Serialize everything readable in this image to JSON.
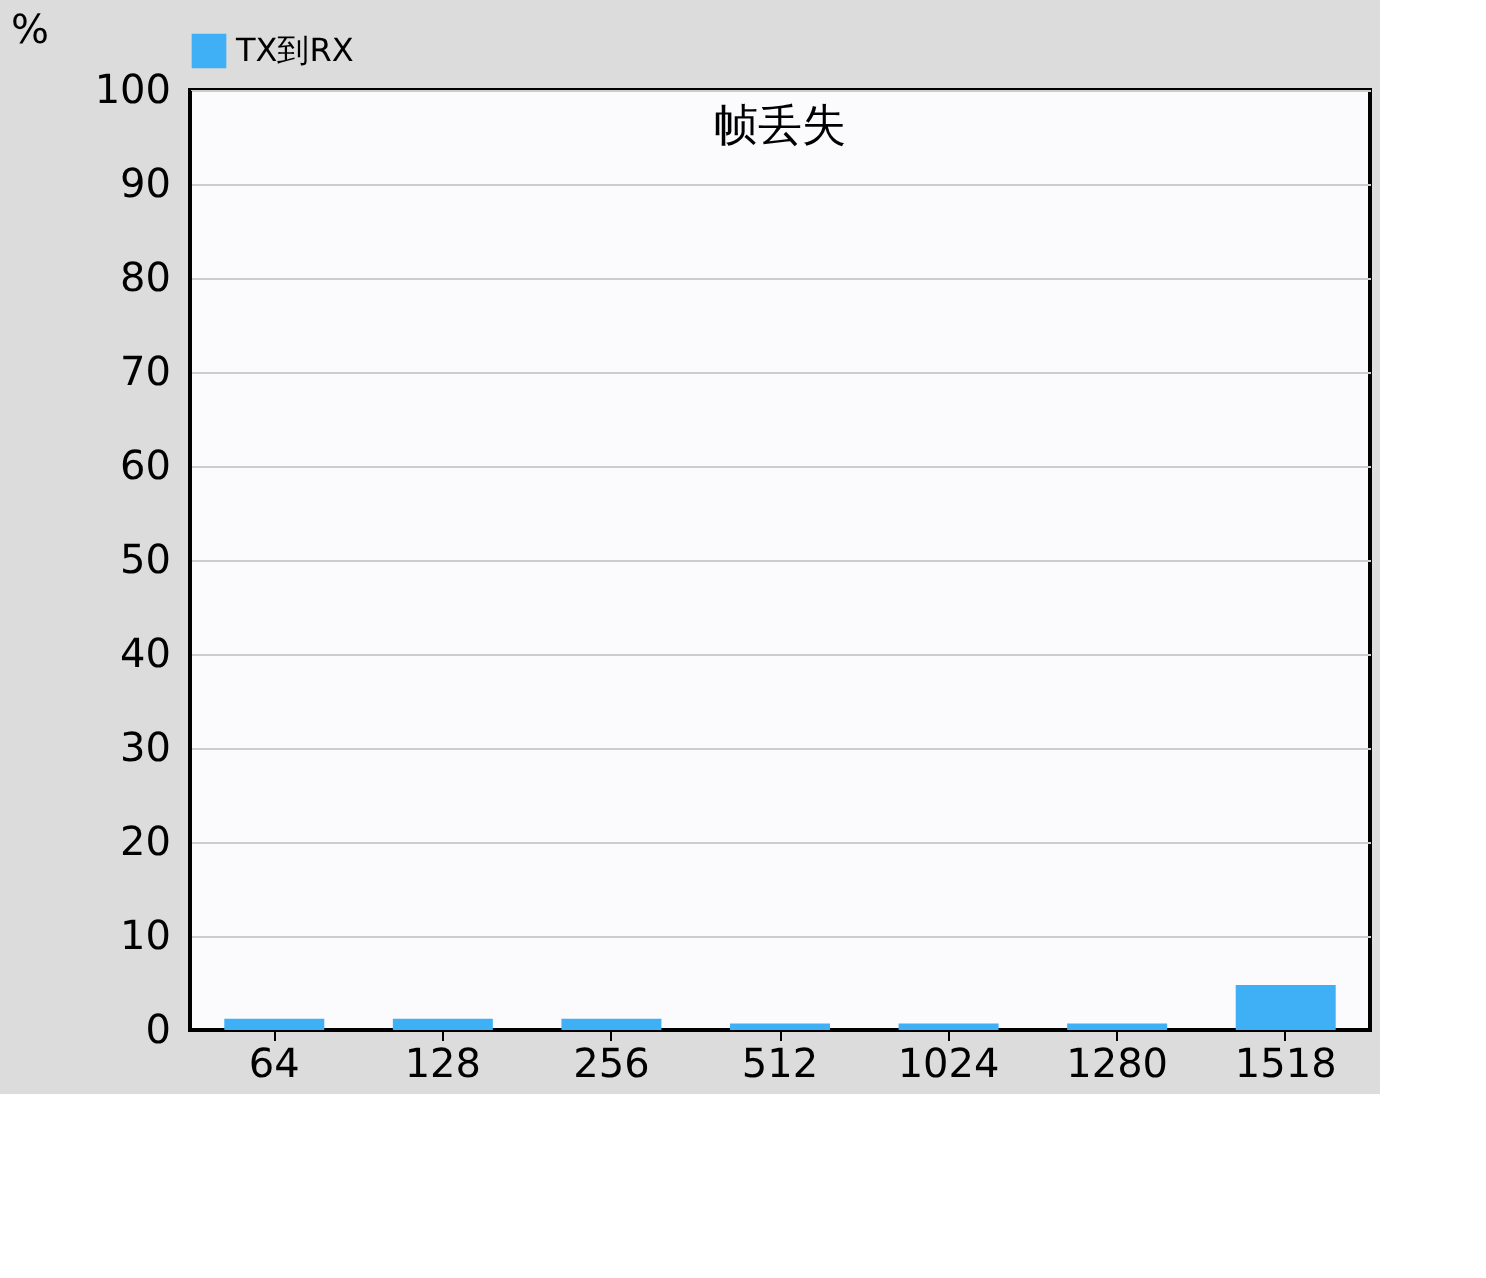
{
  "chart_data": {
    "type": "bar",
    "title": "帧丢失",
    "ylabel": "%",
    "categories": [
      "64",
      "128",
      "256",
      "512",
      "1024",
      "1280",
      "1518"
    ],
    "series": [
      {
        "name": "TX到RX",
        "color": "#3fb0f5",
        "values": [
          1.2,
          1.2,
          1.2,
          0.7,
          0.7,
          0.7,
          4.8
        ]
      }
    ],
    "ylim": [
      0,
      100
    ],
    "yticks": [
      0,
      10,
      20,
      30,
      40,
      50,
      60,
      70,
      80,
      90,
      100
    ],
    "grid": "y",
    "legend": "top"
  }
}
